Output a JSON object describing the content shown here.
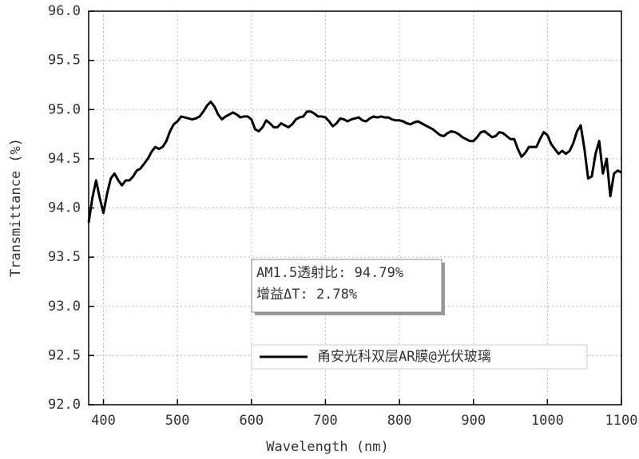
{
  "chart_data": {
    "type": "line",
    "xlabel": "Wavelength (nm)",
    "ylabel": "Transmittance (%)",
    "x": [
      380,
      385,
      390,
      395,
      400,
      405,
      410,
      415,
      420,
      425,
      430,
      435,
      440,
      445,
      450,
      455,
      460,
      465,
      470,
      475,
      480,
      485,
      490,
      495,
      500,
      505,
      510,
      515,
      520,
      525,
      530,
      535,
      540,
      545,
      550,
      555,
      560,
      565,
      570,
      575,
      580,
      585,
      590,
      595,
      600,
      605,
      610,
      615,
      620,
      625,
      630,
      635,
      640,
      645,
      650,
      655,
      660,
      665,
      670,
      675,
      680,
      685,
      690,
      695,
      700,
      705,
      710,
      715,
      720,
      725,
      730,
      735,
      740,
      745,
      750,
      755,
      760,
      765,
      770,
      775,
      780,
      785,
      790,
      795,
      800,
      805,
      810,
      815,
      820,
      825,
      830,
      835,
      840,
      845,
      850,
      855,
      860,
      865,
      870,
      875,
      880,
      885,
      890,
      895,
      900,
      905,
      910,
      915,
      920,
      925,
      930,
      935,
      940,
      945,
      950,
      955,
      960,
      965,
      970,
      975,
      980,
      985,
      990,
      995,
      1000,
      1005,
      1010,
      1015,
      1020,
      1025,
      1030,
      1035,
      1040,
      1045,
      1050,
      1055,
      1060,
      1065,
      1070,
      1075,
      1080,
      1085,
      1090,
      1095,
      1100
    ],
    "series": [
      {
        "name": "甬安光科双层AR膜@光伏玻璃",
        "color": "#000000",
        "values": [
          93.85,
          94.1,
          94.28,
          94.1,
          93.95,
          94.15,
          94.3,
          94.35,
          94.28,
          94.23,
          94.28,
          94.28,
          94.32,
          94.38,
          94.4,
          94.45,
          94.5,
          94.57,
          94.62,
          94.6,
          94.62,
          94.68,
          94.78,
          94.85,
          94.88,
          94.93,
          94.92,
          94.91,
          94.9,
          94.91,
          94.93,
          94.98,
          95.04,
          95.08,
          95.03,
          94.95,
          94.9,
          94.93,
          94.95,
          94.97,
          94.95,
          94.92,
          94.93,
          94.93,
          94.9,
          94.8,
          94.78,
          94.82,
          94.89,
          94.86,
          94.82,
          94.82,
          94.86,
          94.84,
          94.82,
          94.85,
          94.9,
          94.92,
          94.93,
          94.98,
          94.98,
          94.96,
          94.93,
          94.93,
          94.92,
          94.88,
          94.83,
          94.86,
          94.91,
          94.9,
          94.88,
          94.9,
          94.91,
          94.92,
          94.89,
          94.88,
          94.91,
          94.93,
          94.92,
          94.93,
          94.92,
          94.92,
          94.9,
          94.89,
          94.89,
          94.88,
          94.86,
          94.85,
          94.87,
          94.88,
          94.86,
          94.84,
          94.82,
          94.8,
          94.77,
          94.74,
          94.73,
          94.76,
          94.78,
          94.77,
          94.75,
          94.72,
          94.7,
          94.68,
          94.68,
          94.72,
          94.77,
          94.78,
          94.75,
          94.72,
          94.73,
          94.77,
          94.76,
          94.73,
          94.7,
          94.7,
          94.6,
          94.52,
          94.56,
          94.62,
          94.62,
          94.62,
          94.7,
          94.77,
          94.74,
          94.65,
          94.6,
          94.55,
          94.58,
          94.55,
          94.58,
          94.66,
          94.78,
          94.84,
          94.6,
          94.3,
          94.32,
          94.55,
          94.68,
          94.35,
          94.5,
          94.12,
          94.35,
          94.38,
          94.36
        ]
      }
    ],
    "xlim": [
      380,
      1100
    ],
    "xticks": [
      400,
      500,
      600,
      700,
      800,
      900,
      1000,
      1100
    ],
    "ylim": [
      92,
      96
    ],
    "yticks": [
      {
        "value": 92,
        "label": "92.0"
      },
      92.5,
      {
        "value": 93,
        "label": "93.0"
      },
      93.5,
      {
        "value": 94,
        "label": "94.0"
      },
      94.5,
      {
        "value": 95,
        "label": "95.0"
      },
      95.5,
      {
        "value": 96,
        "label": "96.0"
      }
    ],
    "grid": true,
    "legend": "lower right",
    "annotations": [
      "AM1.5透射比: 94.79%",
      "增益ΔT: 2.78%"
    ]
  }
}
